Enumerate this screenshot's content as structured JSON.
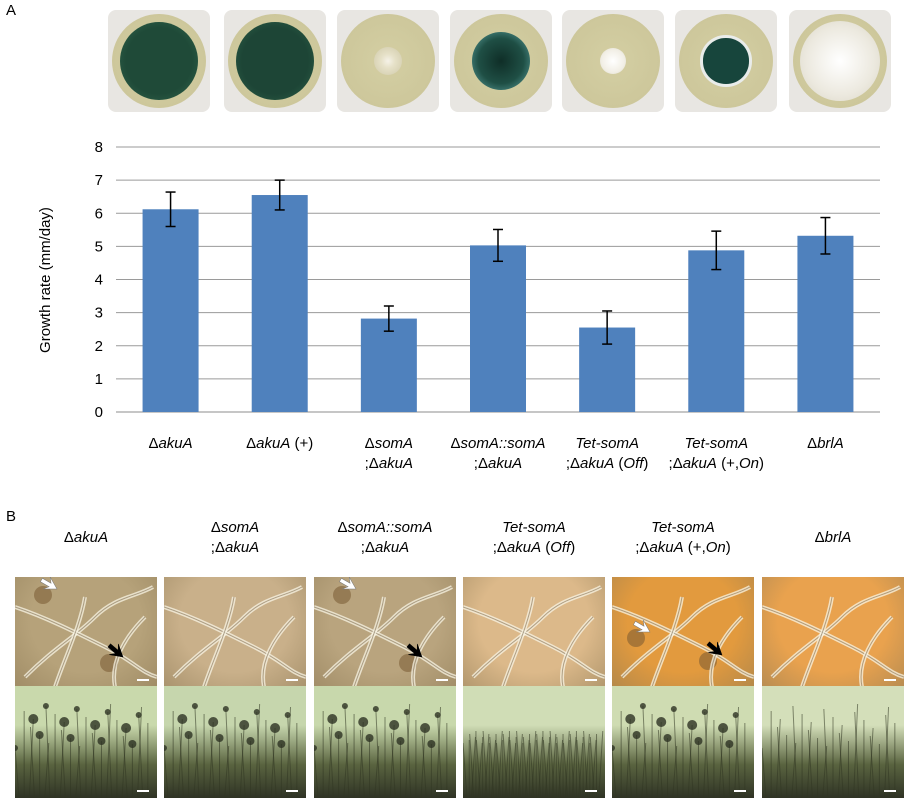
{
  "panel_labels": {
    "a": "A",
    "b": "B"
  },
  "chart_data": {
    "type": "bar",
    "ylabel": "Growth rate (mm/day)",
    "ylim": [
      0,
      8
    ],
    "yticks": [
      0,
      1,
      2,
      3,
      4,
      5,
      6,
      7,
      8
    ],
    "grid": true,
    "bar_color": "#4f81bd",
    "categories": [
      {
        "line1_sym": "Δ",
        "line1_it": "akuA",
        "line1_rest": "",
        "line2": ""
      },
      {
        "line1_sym": "Δ",
        "line1_it": "akuA",
        "line1_rest": " (+)",
        "line2": ""
      },
      {
        "line1_sym": "Δ",
        "line1_it": "somA",
        "line1_rest": "",
        "line2_sym": ";Δ",
        "line2_it": "akuA",
        "line2_rest": ""
      },
      {
        "line1_sym": "Δ",
        "line1_it": "somA::somA",
        "line1_rest": "",
        "line2_sym": ";Δ",
        "line2_it": "akuA",
        "line2_rest": ""
      },
      {
        "line1_sym": "",
        "line1_it": "Tet-somA",
        "line1_rest": "",
        "line2_sym": ";Δ",
        "line2_it": "akuA",
        "line2_rest": " (",
        "line2_it2": "Off",
        "line2_end": ")"
      },
      {
        "line1_sym": "",
        "line1_it": "Tet-somA",
        "line1_rest": "",
        "line2_sym": ";Δ",
        "line2_it": "akuA",
        "line2_rest": " (+,",
        "line2_it2": "On",
        "line2_end": ")"
      },
      {
        "line1_sym": "Δ",
        "line1_it": "brlA",
        "line1_rest": "",
        "line2": ""
      }
    ],
    "values": [
      6.12,
      6.55,
      2.82,
      5.03,
      2.55,
      4.88,
      5.32
    ],
    "errors": [
      0.52,
      0.45,
      0.38,
      0.48,
      0.5,
      0.58,
      0.55
    ]
  },
  "plates": [
    {
      "colony_color": "#1f4a38",
      "rim_color": "#2e6048",
      "size": 0.84,
      "type": "dark"
    },
    {
      "colony_color": "#1d4536",
      "rim_color": "#2a5b44",
      "size": 0.84,
      "type": "dark"
    },
    {
      "colony_color": "#e6e1c8",
      "rim_color": "#cfc9a8",
      "size": 0.3,
      "type": "pale"
    },
    {
      "colony_color": "#1f4f45",
      "rim_color": "#4c8b86",
      "size": 0.62,
      "type": "dark-rim"
    },
    {
      "colony_color": "#f2efe6",
      "rim_color": "#ddd9c8",
      "size": 0.28,
      "type": "white"
    },
    {
      "colony_color": "#17453c",
      "rim_color": "#e9ecea",
      "size": 0.48,
      "type": "dark-ring"
    },
    {
      "colony_color": "#ece9df",
      "rim_color": "#d8d4c3",
      "size": 0.86,
      "type": "white"
    }
  ],
  "panel_b": {
    "titles": [
      {
        "l1_sym": "Δ",
        "l1_it": "akuA",
        "l2": ""
      },
      {
        "l1_sym": "Δ",
        "l1_it": "somA",
        "l2_sym": ";Δ",
        "l2_it": "akuA"
      },
      {
        "l1_sym": "Δ",
        "l1_it": "somA::somA",
        "l2_sym": ";Δ",
        "l2_it": "akuA"
      },
      {
        "l1_sym": "",
        "l1_it": "Tet-somA",
        "l2_sym": ";Δ",
        "l2_it": "akuA",
        "l2_rest": " (",
        "l2_it2": "Off",
        "l2_end": ")"
      },
      {
        "l1_sym": "",
        "l1_it": "Tet-somA",
        "l2_sym": ";Δ",
        "l2_it": "akuA",
        "l2_rest": " (+,",
        "l2_it2": "On",
        "l2_end": ")"
      },
      {
        "l1_sym": "Δ",
        "l1_it": "brlA",
        "l2": ""
      }
    ],
    "micro_colors": [
      "#b6a27a",
      "#c9b08a",
      "#b9a47e",
      "#dcb98a",
      "#e29a3e",
      "#e9a24e"
    ],
    "colony_bg": [
      "#c9d9ac",
      "#c6d6ad",
      "#c8d8ac",
      "#d0ddb6",
      "#cfdcb2",
      "#d4dfba"
    ]
  }
}
